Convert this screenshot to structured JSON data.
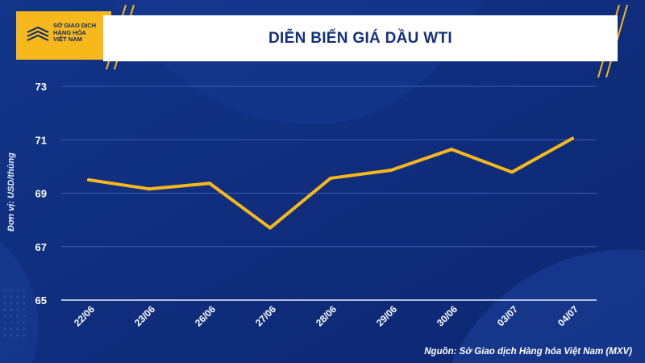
{
  "header": {
    "logo_lines": [
      "SỞ GIAO DỊCH",
      "HÀNG HÓA",
      "VIỆT NAM"
    ],
    "title": "DIỄN BIẾN GIÁ DẦU WTI"
  },
  "source_note": "Nguồn: Sở Giao dịch Hàng hóa Việt Nam (MXV)",
  "colors": {
    "background": "#0e2a78",
    "line": "#f6b81a",
    "accent": "#f6b81a"
  },
  "chart_data": {
    "type": "line",
    "title": "DIỄN BIẾN GIÁ DẦU WTI",
    "xlabel": "",
    "ylabel": "Đơn vị: USD/thùng",
    "categories": [
      "22/06",
      "23/06",
      "26/06",
      "27/06",
      "28/06",
      "29/06",
      "30/06",
      "03/07",
      "04/07"
    ],
    "series": [
      {
        "values": [
          69.5,
          69.16,
          69.37,
          67.7,
          69.56,
          69.86,
          70.64,
          69.79,
          71.05
        ]
      }
    ],
    "yticks": [
      65,
      67,
      69,
      71,
      73
    ],
    "ylim": [
      65,
      73
    ],
    "grid": true,
    "legend": "none"
  }
}
